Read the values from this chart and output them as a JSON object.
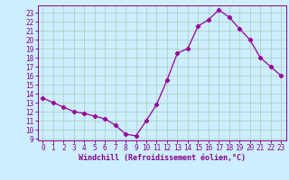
{
  "x": [
    0,
    1,
    2,
    3,
    4,
    5,
    6,
    7,
    8,
    9,
    10,
    11,
    12,
    13,
    14,
    15,
    16,
    17,
    18,
    19,
    20,
    21,
    22,
    23
  ],
  "y": [
    13.5,
    13.0,
    12.5,
    12.0,
    11.8,
    11.5,
    11.2,
    10.5,
    9.5,
    9.3,
    11.0,
    12.8,
    15.5,
    18.5,
    19.0,
    21.5,
    22.2,
    23.3,
    22.5,
    21.2,
    20.0,
    18.0,
    17.0,
    16.0
  ],
  "line_color": "#990099",
  "marker": "D",
  "marker_size": 2.2,
  "bg_color": "#cceeff",
  "grid_color": "#aaccbb",
  "xlabel": "Windchill (Refroidissement éolien,°C)",
  "ylabel_ticks": [
    9,
    10,
    11,
    12,
    13,
    14,
    15,
    16,
    17,
    18,
    19,
    20,
    21,
    22,
    23
  ],
  "xticks": [
    0,
    1,
    2,
    3,
    4,
    5,
    6,
    7,
    8,
    9,
    10,
    11,
    12,
    13,
    14,
    15,
    16,
    17,
    18,
    19,
    20,
    21,
    22,
    23
  ],
  "ylim": [
    8.8,
    23.8
  ],
  "xlim": [
    -0.5,
    23.5
  ],
  "font_color": "#880088",
  "tick_fontsize": 5.5,
  "xlabel_fontsize": 6.0,
  "linewidth": 0.9
}
